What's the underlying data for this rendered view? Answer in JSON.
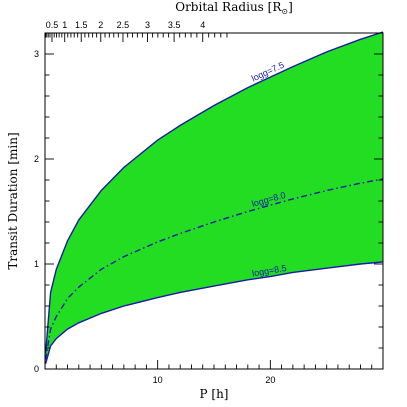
{
  "chart_data": {
    "type": "area",
    "xlabel": "P [h]",
    "ylabel": "Transit Duration [min]",
    "top_axis_label": "Orbital Radius [R",
    "top_axis_sub": "⊙",
    "top_axis_close": "]",
    "xlim": [
      0,
      30
    ],
    "ylim": [
      0,
      3.2
    ],
    "x_ticks": [
      10,
      20
    ],
    "y_ticks": [
      0,
      1,
      2,
      3
    ],
    "top_ticks": [
      0.5,
      1,
      1.5,
      2,
      2.5,
      3,
      3.5,
      4
    ],
    "top_tick_labels": [
      "0.5",
      "1",
      "1.5",
      "2",
      "2.5",
      "3",
      "3.5",
      "4"
    ],
    "fill_color": "#22dd22",
    "line_color": "#1a1aa8",
    "band": {
      "upper_series": "logg=7.5",
      "lower_series": "logg=8.5"
    },
    "series": [
      {
        "name": "logg=7.5",
        "style": "solid",
        "x": [
          0.05,
          0.5,
          1,
          2,
          3,
          5,
          7,
          10,
          12,
          15,
          18,
          20,
          22,
          25,
          28,
          30
        ],
        "y": [
          0.15,
          0.73,
          0.95,
          1.22,
          1.42,
          1.7,
          1.92,
          2.18,
          2.32,
          2.51,
          2.68,
          2.78,
          2.88,
          3.02,
          3.14,
          3.21
        ]
      },
      {
        "name": "logg=8.0",
        "style": "dashdot",
        "x": [
          0.05,
          0.5,
          1,
          2,
          3,
          5,
          7,
          10,
          12,
          15,
          18,
          20,
          22,
          25,
          28,
          30
        ],
        "y": [
          0.09,
          0.38,
          0.5,
          0.67,
          0.78,
          0.95,
          1.07,
          1.21,
          1.29,
          1.4,
          1.5,
          1.56,
          1.62,
          1.7,
          1.77,
          1.81
        ]
      },
      {
        "name": "logg=8.5",
        "style": "solid",
        "x": [
          0.05,
          0.5,
          1,
          2,
          3,
          5,
          7,
          10,
          12,
          15,
          18,
          20,
          22,
          25,
          28,
          30
        ],
        "y": [
          0.05,
          0.22,
          0.29,
          0.38,
          0.44,
          0.53,
          0.6,
          0.68,
          0.73,
          0.79,
          0.85,
          0.88,
          0.92,
          0.96,
          1.0,
          1.02
        ]
      }
    ],
    "labels": [
      {
        "text": "logg=7.5",
        "series": "logg=7.5",
        "at_x": 20
      },
      {
        "text": "logg=8.0",
        "series": "logg=8.0",
        "at_x": 20
      },
      {
        "text": "logg=8.5",
        "series": "logg=8.5",
        "at_x": 20
      }
    ]
  }
}
